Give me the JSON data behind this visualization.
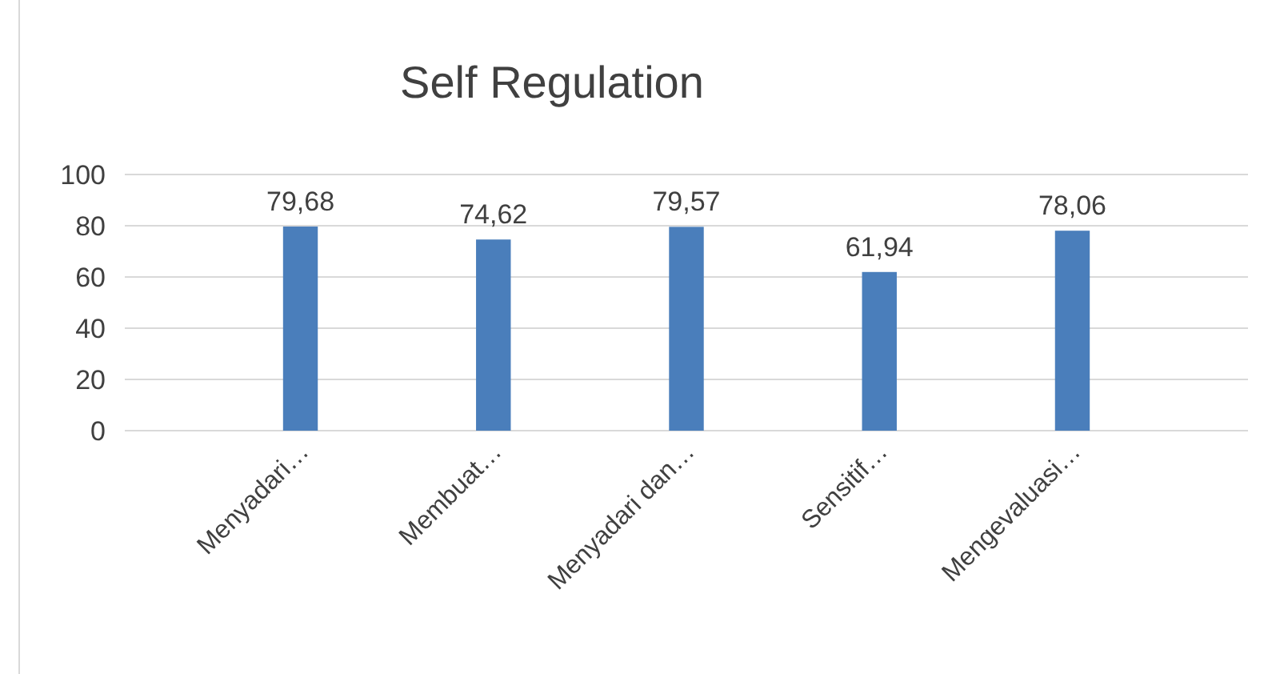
{
  "chart_data": {
    "type": "bar",
    "title": "Self Regulation",
    "categories": [
      "Menyadari…",
      "Membuat…",
      "Menyadari dan…",
      "Sensitif…",
      "Mengevaluasi…"
    ],
    "values": [
      79.68,
      74.62,
      79.57,
      61.94,
      78.06
    ],
    "value_labels": [
      "79,68",
      "74,62",
      "79,57",
      "61,94",
      "78,06"
    ],
    "color": "#4a7ebb",
    "ylim": [
      0,
      100
    ],
    "yticks": [
      0,
      20,
      40,
      60,
      80,
      100
    ],
    "grid": "y"
  }
}
